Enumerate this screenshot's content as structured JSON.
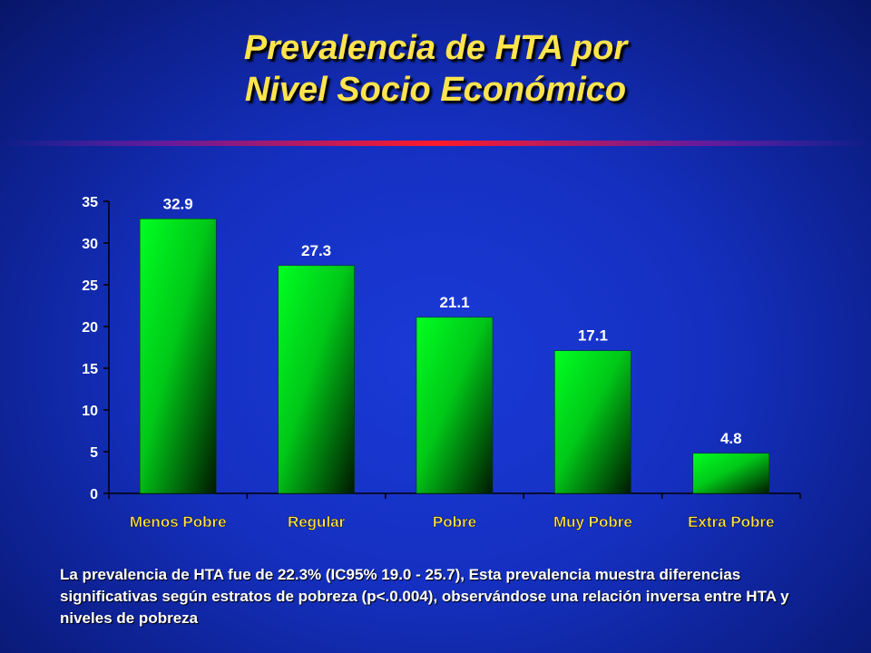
{
  "slide": {
    "title_line1": "Prevalencia de HTA por",
    "title_line2": "Nivel Socio Económico",
    "caption": "La prevalencia de HTA fue de 22.3% (IC95% 19.0 - 25.7), Esta prevalencia muestra diferencias significativas según estratos de pobreza (p<.0.004), observándose una relación inversa entre HTA y niveles de pobreza"
  },
  "chart_data": {
    "type": "bar",
    "categories": [
      "Menos Pobre",
      "Regular",
      "Pobre",
      "Muy Pobre",
      "Extra Pobre"
    ],
    "values": [
      32.9,
      27.3,
      21.1,
      17.1,
      4.8
    ],
    "data_labels": [
      "32.9",
      "27.3",
      "21.1",
      "17.1",
      "4.8"
    ],
    "ylim": [
      0,
      35
    ],
    "yticks": [
      0,
      5,
      10,
      15,
      20,
      25,
      30,
      35
    ],
    "grid": false,
    "legend": "none",
    "colors": {
      "bar_light": "#00ff22",
      "bar_dark": "#001800",
      "category_label": "#ffe44d",
      "axis": "#000000",
      "tick_label": "#ffffff"
    }
  }
}
